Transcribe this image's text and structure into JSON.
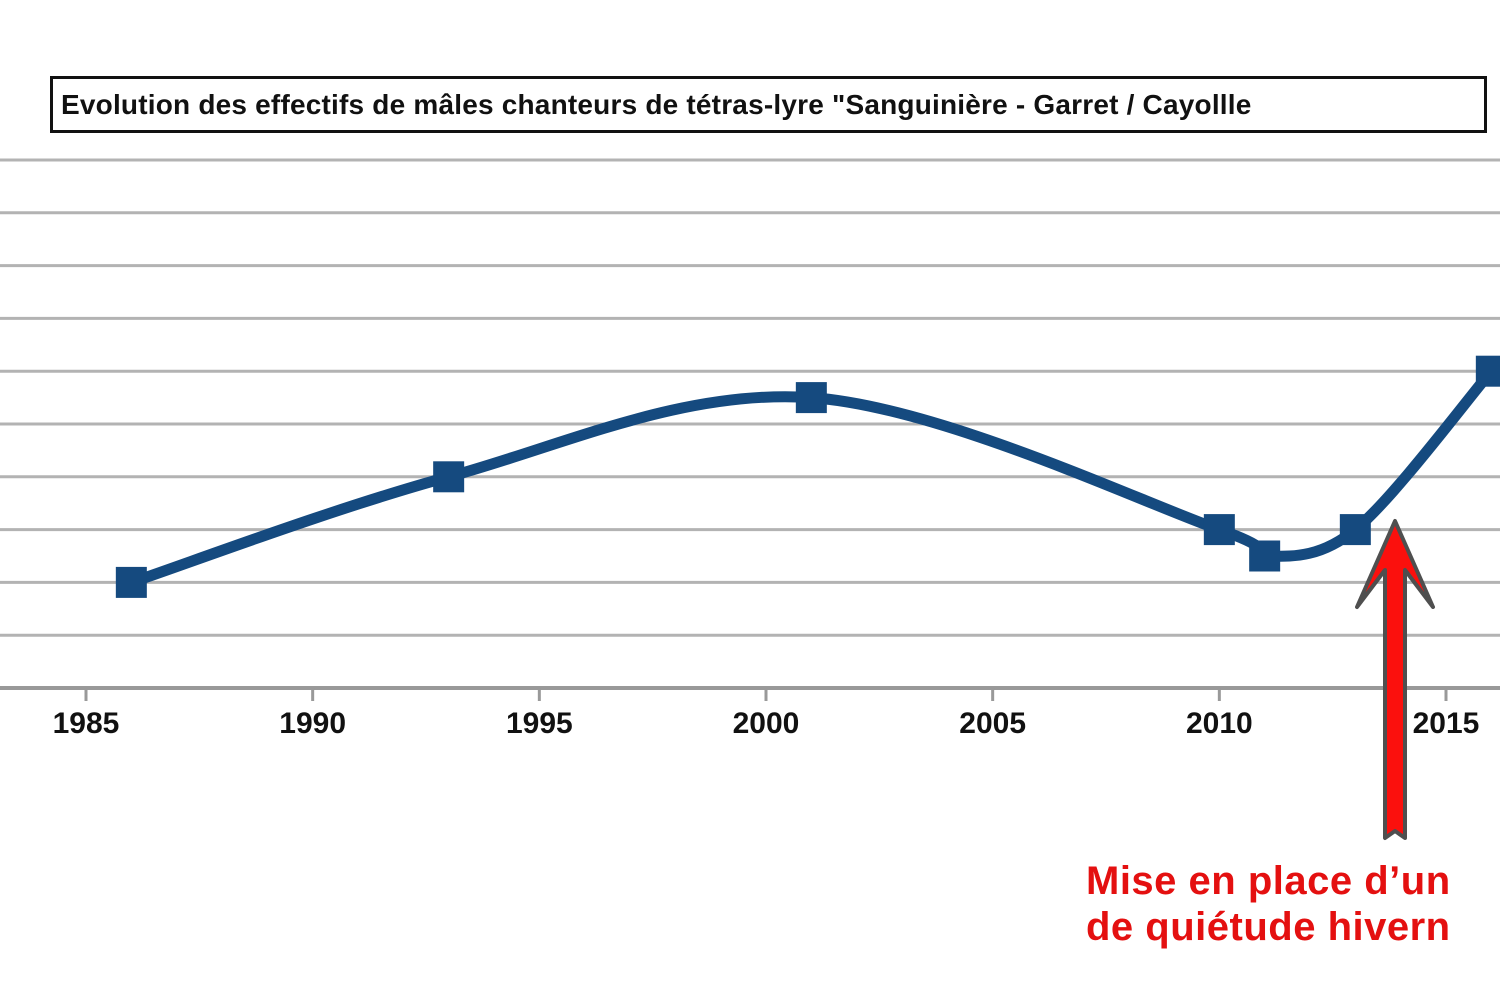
{
  "chart_data": {
    "type": "line",
    "smoothed": true,
    "marker": "square",
    "title": "Evolution des effectifs de mâles chanteurs de tétras-lyre  \"Sanguinière - Garret / Cayollle",
    "x": [
      1986,
      1993,
      2001,
      2010,
      2011,
      2013,
      2016
    ],
    "values": [
      2,
      4,
      5.5,
      3,
      2.5,
      3,
      6
    ],
    "values_note": "y-axis labels are cropped out of frame; values estimated in gridline units (axis baseline = 0, 1 unit per gridline)",
    "x_ticks": [
      "1985",
      "1990",
      "1995",
      "2000",
      "2005",
      "2010",
      "2015"
    ],
    "xlabel": "",
    "ylabel": "",
    "ylim": [
      0,
      10
    ],
    "grid": "horizontal",
    "legend": "none"
  },
  "annotation": {
    "line1": "Mise en place d’un",
    "line2": "de quiétude hivern",
    "arrow": "red-up-arrow",
    "arrow_points_to_year": 2013
  },
  "colors": {
    "line": "#154a7f",
    "grid": "#b3b3b3",
    "axis": "#999999",
    "title_text": "#111111",
    "title_box_border": "#111111",
    "tick_label": "#111111",
    "annotation_text": "#e41010",
    "arrow_fill": "#fb100d",
    "arrow_outline": "#4f4f4f",
    "background": "#ffffff"
  }
}
